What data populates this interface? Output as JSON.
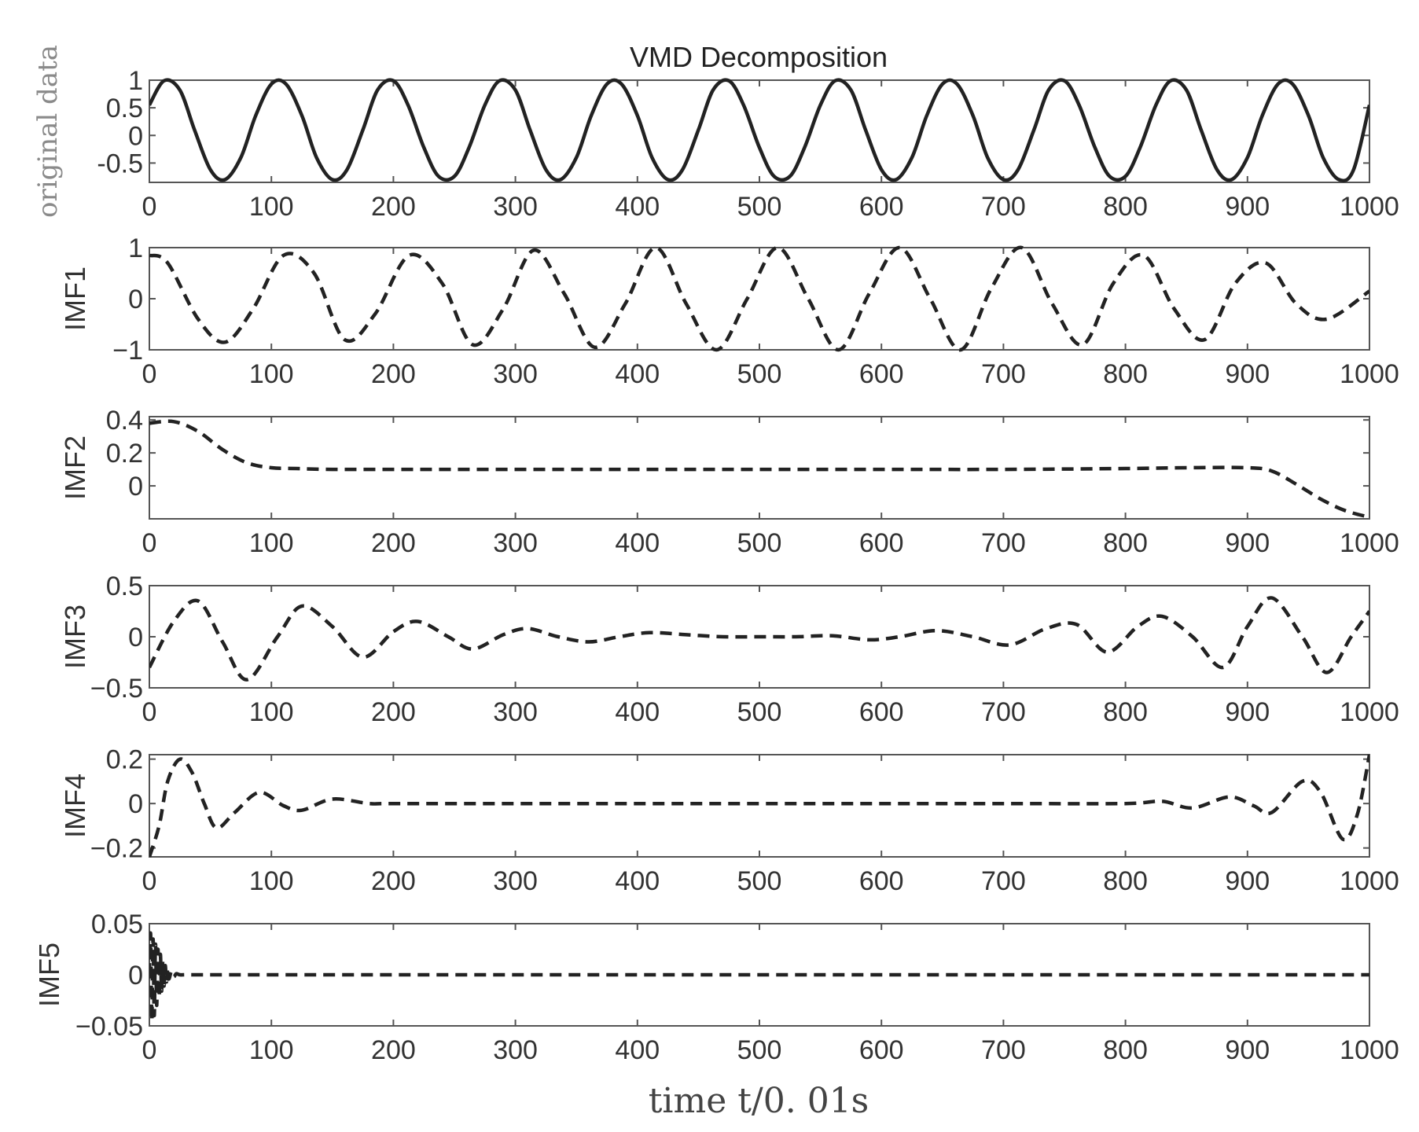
{
  "chart_data": [
    {
      "type": "line",
      "title": "VMD Decomposition",
      "ylabel": "original data",
      "xlim": [
        0,
        1000
      ],
      "ylim": [
        -0.85,
        1.0
      ],
      "xticks": [
        "0",
        "100",
        "200",
        "300",
        "400",
        "500",
        "600",
        "700",
        "800",
        "900",
        "1000"
      ],
      "yticks": [
        {
          "v": 1,
          "label": "1"
        },
        {
          "v": 0.5,
          "label": "0.5"
        },
        {
          "v": 0,
          "label": "0"
        },
        {
          "v": -0.5,
          "label": "-0.5"
        }
      ],
      "line_style": "solid",
      "series": [
        {
          "x": [
            0,
            12,
            25,
            37,
            50,
            62,
            75,
            87,
            100,
            112,
            125,
            137,
            150,
            162,
            175,
            187,
            200,
            212,
            225,
            237,
            250,
            262,
            275,
            287,
            300,
            312,
            325,
            337,
            350,
            362,
            375,
            387,
            400,
            412,
            425,
            437,
            450,
            462,
            475,
            487,
            500,
            512,
            525,
            537,
            550,
            562,
            575,
            587,
            600,
            612,
            625,
            637,
            650,
            662,
            675,
            687,
            700,
            712,
            725,
            737,
            750,
            762,
            775,
            787,
            800,
            812,
            825,
            837,
            850,
            862,
            875,
            887,
            900,
            912,
            925,
            937,
            950,
            962,
            975,
            987,
            1000
          ],
          "y": [
            0.55,
            0.99,
            0.82,
            0.1,
            -0.62,
            -0.8,
            -0.4,
            0.35,
            0.93,
            0.93,
            0.36,
            -0.4,
            -0.8,
            -0.62,
            0.1,
            0.82,
            0.99,
            0.55,
            -0.22,
            -0.74,
            -0.74,
            -0.22,
            0.55,
            0.99,
            0.82,
            0.1,
            -0.62,
            -0.8,
            -0.4,
            0.35,
            0.93,
            0.93,
            0.36,
            -0.4,
            -0.8,
            -0.62,
            0.1,
            0.82,
            0.99,
            0.55,
            -0.22,
            -0.74,
            -0.74,
            -0.22,
            0.55,
            0.99,
            0.82,
            0.1,
            -0.62,
            -0.8,
            -0.4,
            0.35,
            0.93,
            0.93,
            0.36,
            -0.4,
            -0.8,
            -0.62,
            0.1,
            0.82,
            0.99,
            0.55,
            -0.22,
            -0.74,
            -0.74,
            -0.22,
            0.55,
            0.99,
            0.82,
            0.1,
            -0.62,
            -0.8,
            -0.4,
            0.35,
            0.93,
            0.93,
            0.36,
            -0.4,
            -0.8,
            -0.62,
            0.55
          ]
        }
      ]
    },
    {
      "type": "line",
      "ylabel": "IMF1",
      "xlim": [
        0,
        1000
      ],
      "ylim": [
        -1,
        1
      ],
      "xticks": [
        "0",
        "100",
        "200",
        "300",
        "400",
        "500",
        "600",
        "700",
        "800",
        "900",
        "1000"
      ],
      "yticks": [
        {
          "v": 1,
          "label": "1"
        },
        {
          "v": 0,
          "label": "0"
        },
        {
          "v": -1,
          "label": "−1"
        }
      ],
      "line_style": "dashed",
      "series": [
        {
          "x": [
            0,
            15,
            40,
            62,
            85,
            110,
            135,
            160,
            185,
            213,
            240,
            265,
            290,
            315,
            340,
            365,
            390,
            415,
            440,
            465,
            490,
            515,
            540,
            565,
            590,
            615,
            640,
            665,
            690,
            715,
            740,
            765,
            790,
            815,
            840,
            865,
            890,
            915,
            940,
            965,
            1000
          ],
          "y": [
            0.85,
            0.7,
            -0.4,
            -0.85,
            -0.2,
            0.85,
            0.5,
            -0.8,
            -0.3,
            0.85,
            0.3,
            -0.9,
            -0.2,
            0.95,
            0.1,
            -0.95,
            -0.1,
            1.0,
            -0.1,
            -1.0,
            0.0,
            1.0,
            0.0,
            -1.0,
            0.1,
            1.0,
            0.0,
            -1.0,
            0.2,
            1.0,
            -0.1,
            -0.9,
            0.3,
            0.85,
            -0.2,
            -0.8,
            0.3,
            0.7,
            -0.1,
            -0.4,
            0.15
          ]
        }
      ]
    },
    {
      "type": "line",
      "ylabel": "IMF2",
      "xlim": [
        0,
        1000
      ],
      "ylim": [
        -0.2,
        0.42
      ],
      "xticks": [
        "0",
        "100",
        "200",
        "300",
        "400",
        "500",
        "600",
        "700",
        "800",
        "900",
        "1000"
      ],
      "yticks": [
        {
          "v": 0.4,
          "label": "0.4"
        },
        {
          "v": 0.2,
          "label": "0.2"
        },
        {
          "v": 0,
          "label": "0"
        }
      ],
      "line_style": "dashed",
      "series": [
        {
          "x": [
            0,
            20,
            40,
            60,
            80,
            100,
            120,
            150,
            200,
            300,
            400,
            500,
            600,
            700,
            800,
            850,
            900,
            920,
            940,
            960,
            980,
            1000
          ],
          "y": [
            0.38,
            0.39,
            0.33,
            0.22,
            0.14,
            0.11,
            0.105,
            0.1,
            0.1,
            0.1,
            0.1,
            0.1,
            0.1,
            0.1,
            0.105,
            0.11,
            0.11,
            0.09,
            0.01,
            -0.08,
            -0.15,
            -0.19
          ]
        }
      ]
    },
    {
      "type": "line",
      "ylabel": "IMF3",
      "xlim": [
        0,
        1000
      ],
      "ylim": [
        -0.5,
        0.5
      ],
      "xticks": [
        "0",
        "100",
        "200",
        "300",
        "400",
        "500",
        "600",
        "700",
        "800",
        "900",
        "1000"
      ],
      "yticks": [
        {
          "v": 0.5,
          "label": "0.5"
        },
        {
          "v": 0,
          "label": "0"
        },
        {
          "v": -0.5,
          "label": "−0.5"
        }
      ],
      "line_style": "dashed",
      "series": [
        {
          "x": [
            0,
            20,
            40,
            60,
            80,
            105,
            125,
            150,
            175,
            200,
            220,
            245,
            265,
            290,
            310,
            335,
            360,
            385,
            410,
            440,
            470,
            500,
            530,
            560,
            590,
            615,
            645,
            675,
            705,
            735,
            760,
            785,
            810,
            830,
            855,
            880,
            900,
            920,
            945,
            965,
            985,
            1000
          ],
          "y": [
            -0.3,
            0.15,
            0.35,
            -0.05,
            -0.42,
            0.0,
            0.3,
            0.1,
            -0.2,
            0.05,
            0.15,
            0.0,
            -0.12,
            0.02,
            0.08,
            0.0,
            -0.05,
            0.0,
            0.04,
            0.02,
            0.0,
            0.0,
            0.0,
            0.01,
            -0.03,
            0.0,
            0.06,
            0.0,
            -0.08,
            0.08,
            0.12,
            -0.15,
            0.1,
            0.2,
            0.0,
            -0.3,
            0.1,
            0.38,
            0.0,
            -0.35,
            0.0,
            0.25
          ]
        }
      ]
    },
    {
      "type": "line",
      "ylabel": "IMF4",
      "xlim": [
        0,
        1000
      ],
      "ylim": [
        -0.24,
        0.22
      ],
      "xticks": [
        "0",
        "100",
        "200",
        "300",
        "400",
        "500",
        "600",
        "700",
        "800",
        "900",
        "1000"
      ],
      "yticks": [
        {
          "v": 0.2,
          "label": "0.2"
        },
        {
          "v": 0,
          "label": "0"
        },
        {
          "v": -0.2,
          "label": "−0.2"
        }
      ],
      "line_style": "dashed",
      "series": [
        {
          "x": [
            0,
            8,
            15,
            25,
            35,
            45,
            55,
            70,
            90,
            110,
            125,
            150,
            180,
            200,
            300,
            400,
            500,
            600,
            700,
            800,
            830,
            855,
            885,
            905,
            920,
            945,
            960,
            978,
            990,
            1000
          ],
          "y": [
            -0.24,
            -0.1,
            0.1,
            0.2,
            0.14,
            0.0,
            -0.11,
            -0.04,
            0.05,
            -0.01,
            -0.03,
            0.02,
            0.0,
            0.0,
            0.0,
            0.0,
            0.0,
            0.0,
            0.0,
            0.0,
            0.01,
            -0.02,
            0.03,
            -0.01,
            -0.04,
            0.1,
            0.05,
            -0.16,
            -0.05,
            0.22
          ]
        }
      ]
    },
    {
      "type": "line",
      "ylabel": "IMF5",
      "xlim": [
        0,
        1000
      ],
      "ylim": [
        -0.05,
        0.05
      ],
      "xticks": [
        "0",
        "100",
        "200",
        "300",
        "400",
        "500",
        "600",
        "700",
        "800",
        "900",
        "1000"
      ],
      "yticks": [
        {
          "v": 0.05,
          "label": "0.05"
        },
        {
          "v": 0,
          "label": "0"
        },
        {
          "v": -0.05,
          "label": "−0.05"
        }
      ],
      "line_style": "dashed",
      "series": [
        {
          "x": [
            0,
            1,
            2,
            3,
            4,
            5,
            6,
            7,
            8,
            9,
            10,
            11,
            12,
            13,
            14,
            15,
            16,
            18,
            20,
            22,
            25,
            30,
            40,
            60,
            100,
            200,
            300,
            400,
            500,
            600,
            700,
            800,
            900,
            1000
          ],
          "y": [
            0.0,
            0.04,
            -0.045,
            0.035,
            -0.04,
            0.03,
            -0.03,
            0.025,
            -0.022,
            0.02,
            -0.016,
            0.014,
            -0.011,
            0.009,
            -0.007,
            0.006,
            -0.004,
            0.003,
            -0.002,
            0.001,
            0.0,
            0.0,
            0.0,
            0.0,
            0.0,
            0.0,
            0.0,
            0.0,
            0.0,
            0.0,
            0.0,
            0.0,
            0.0,
            0.0
          ]
        }
      ]
    }
  ],
  "figure": {
    "xlabel": "time  t/0. 01s"
  }
}
